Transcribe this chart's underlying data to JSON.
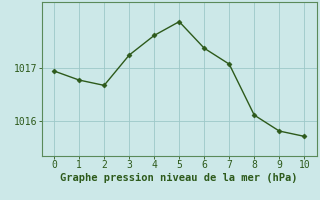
{
  "x": [
    0,
    1,
    2,
    3,
    4,
    5,
    6,
    7,
    8,
    9,
    10
  ],
  "y": [
    1016.95,
    1016.78,
    1016.68,
    1017.25,
    1017.62,
    1017.88,
    1017.38,
    1017.08,
    1016.12,
    1015.82,
    1015.72
  ],
  "line_color": "#2d5a1b",
  "marker": "D",
  "marker_size": 2.5,
  "marker_color": "#2d5a1b",
  "bg_color": "#cce8e8",
  "grid_color": "#9dc8c8",
  "xlabel": "Graphe pression niveau de la mer (hPa)",
  "xlabel_color": "#2d5a1b",
  "xlabel_fontsize": 7.5,
  "ylabel_ticks": [
    1016,
    1017
  ],
  "xlim": [
    -0.5,
    10.5
  ],
  "ylim": [
    1015.35,
    1018.25
  ],
  "tick_color": "#2d5a1b",
  "tick_fontsize": 7,
  "spine_color": "#5a8a5a",
  "linewidth": 1.0
}
